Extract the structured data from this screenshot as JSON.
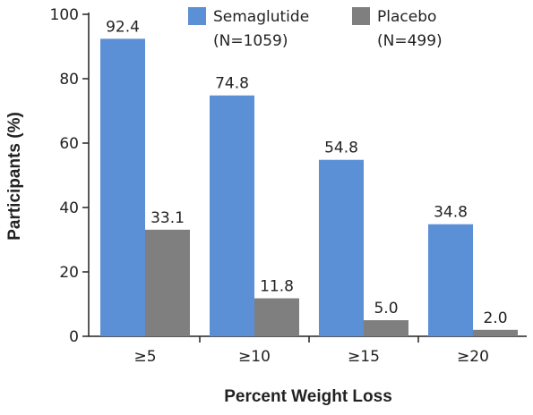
{
  "chart_data": {
    "type": "bar",
    "title": "",
    "xlabel": "Percent Weight Loss",
    "ylabel": "Participants (%)",
    "categories": [
      "≥5",
      "≥10",
      "≥15",
      "≥20"
    ],
    "yticks": [
      0,
      20,
      40,
      60,
      80,
      100
    ],
    "ylim": [
      0,
      100
    ],
    "grid": false,
    "legend_position": "top-right",
    "series": [
      {
        "name": "Semaglutide",
        "n_label": "(N=1059)",
        "color": "#5b8fd6",
        "values": [
          92.4,
          74.8,
          54.8,
          34.8
        ],
        "labels": [
          "92.4",
          "74.8",
          "54.8",
          "34.8"
        ]
      },
      {
        "name": "Placebo",
        "n_label": "(N=499)",
        "color": "#7f7f7f",
        "values": [
          33.1,
          11.8,
          5.0,
          2.0
        ],
        "labels": [
          "33.1",
          "11.8",
          "5.0",
          "2.0"
        ]
      }
    ]
  }
}
